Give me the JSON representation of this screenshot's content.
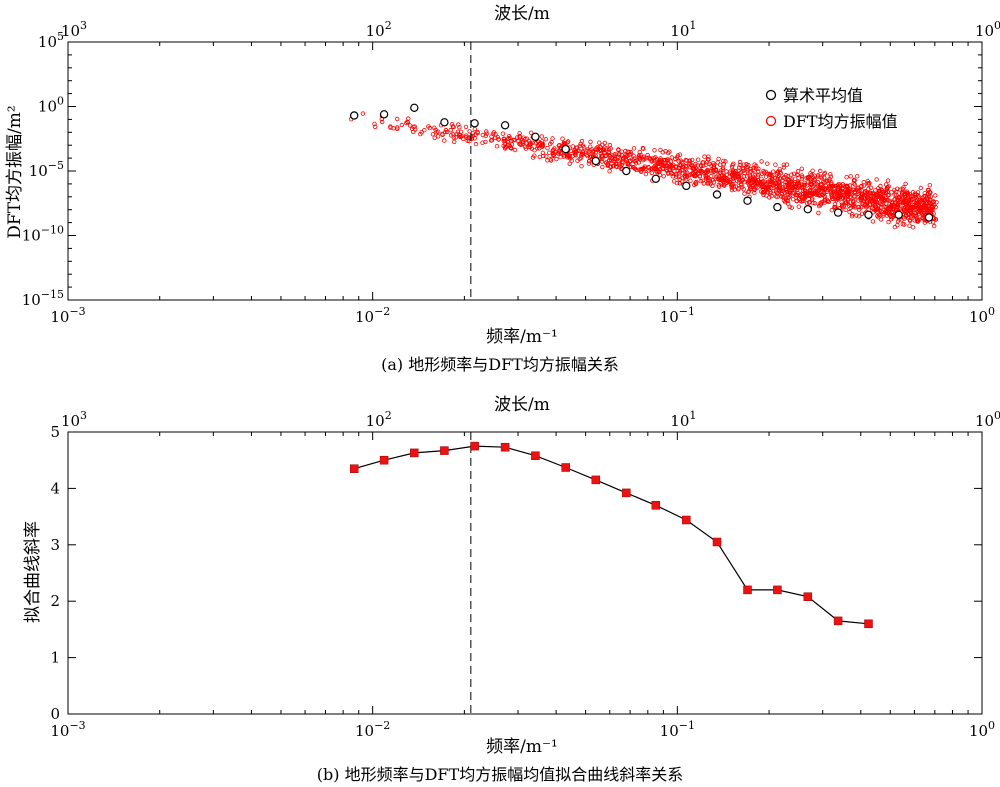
{
  "chart_data": [
    {
      "type": "scatter",
      "caption": "(a) 地形频率与DFT均方振幅关系",
      "xlabel": "频率/m⁻¹",
      "ylabel": "DFT均方振幅/m²",
      "top_xlabel": "波长/m",
      "x_scale": "log",
      "y_scale": "log",
      "xlim": [
        0.001,
        1
      ],
      "ylim": [
        1e-15,
        100000
      ],
      "x_ticks": [
        {
          "base": "10",
          "exp": "−3"
        },
        {
          "base": "10",
          "exp": "−2"
        },
        {
          "base": "10",
          "exp": "−1"
        },
        {
          "base": "10",
          "exp": "0"
        }
      ],
      "top_ticks": [
        {
          "base": "10",
          "exp": "3"
        },
        {
          "base": "10",
          "exp": "2"
        },
        {
          "base": "10",
          "exp": "1"
        },
        {
          "base": "10",
          "exp": "0"
        }
      ],
      "y_ticks": [
        {
          "base": "10",
          "exp": "5"
        },
        {
          "base": "10",
          "exp": "0"
        },
        {
          "base": "10",
          "exp": "−5"
        },
        {
          "base": "10",
          "exp": "−10"
        },
        {
          "base": "10",
          "exp": "−15"
        }
      ],
      "vline_x": 0.021,
      "legend_position": "top-right",
      "series": [
        {
          "name": "算术平均值",
          "marker": "open-circle",
          "color": "#000000",
          "x": [
            0.0087,
            0.0109,
            0.0137,
            0.0172,
            0.0216,
            0.0272,
            0.0342,
            0.043,
            0.054,
            0.068,
            0.085,
            0.107,
            0.135,
            0.17,
            0.213,
            0.268,
            0.337,
            0.424,
            0.533,
            0.67
          ],
          "y": [
            0.2,
            0.25,
            0.8,
            0.06,
            0.05,
            0.035,
            0.0045,
            0.0005,
            6e-05,
            1e-05,
            2.5e-06,
            7e-07,
            1.5e-07,
            5e-08,
            1.6e-08,
            1.1e-08,
            6e-09,
            4e-09,
            4e-09,
            2.5e-09
          ]
        },
        {
          "name": "DFT均方振幅值",
          "marker": "open-circle-small",
          "color": "#ff0000",
          "x_range": [
            0.0077,
            0.71
          ],
          "trend_y": [
            0.25,
            1e-08
          ],
          "scatter_decades": 1.2
        }
      ]
    },
    {
      "type": "line",
      "caption": "(b) 地形频率与DFT均方振幅均值拟合曲线斜率关系",
      "xlabel": "频率/m⁻¹",
      "ylabel": "拟合曲线斜率",
      "top_xlabel": "波长/m",
      "x_scale": "log",
      "xlim": [
        0.001,
        1
      ],
      "ylim": [
        0,
        5
      ],
      "y_ticks": [
        "0",
        "1",
        "2",
        "3",
        "4",
        "5"
      ],
      "y_tick_values": [
        0,
        1,
        2,
        3,
        4,
        5
      ],
      "x_ticks": [
        {
          "base": "10",
          "exp": "−3"
        },
        {
          "base": "10",
          "exp": "−2"
        },
        {
          "base": "10",
          "exp": "−1"
        },
        {
          "base": "10",
          "exp": "0"
        }
      ],
      "top_ticks": [
        {
          "base": "10",
          "exp": "3"
        },
        {
          "base": "10",
          "exp": "2"
        },
        {
          "base": "10",
          "exp": "1"
        },
        {
          "base": "10",
          "exp": "0"
        }
      ],
      "vline_x": 0.021,
      "series": [
        {
          "marker": "square",
          "marker_color": "#ee1111",
          "line_color": "#000000",
          "x": [
            0.0087,
            0.0109,
            0.0137,
            0.0172,
            0.0216,
            0.0272,
            0.0342,
            0.043,
            0.054,
            0.068,
            0.085,
            0.107,
            0.135,
            0.17,
            0.213,
            0.268,
            0.337,
            0.424
          ],
          "y": [
            4.35,
            4.5,
            4.63,
            4.67,
            4.75,
            4.73,
            4.58,
            4.37,
            4.15,
            3.92,
            3.7,
            3.44,
            3.05,
            2.2,
            2.2,
            2.08,
            1.65,
            1.6
          ]
        }
      ]
    }
  ]
}
